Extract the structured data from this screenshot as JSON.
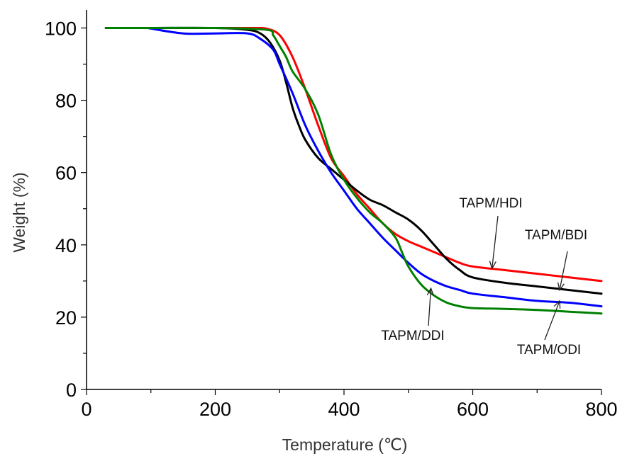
{
  "chart_data": {
    "type": "line",
    "xlabel": "Temperature (℃)",
    "ylabel": "Weight (%)",
    "xlim": [
      0,
      800
    ],
    "ylim": [
      0,
      105
    ],
    "x_ticks": [
      0,
      200,
      400,
      600,
      800
    ],
    "y_ticks": [
      0,
      20,
      40,
      60,
      80,
      100
    ],
    "grid": false,
    "legend": "none",
    "series": [
      {
        "name": "TAPM/HDI",
        "color": "#ff0000",
        "x": [
          30,
          100,
          200,
          260,
          280,
          300,
          320,
          340,
          360,
          380,
          400,
          420,
          440,
          460,
          480,
          500,
          520,
          540,
          560,
          580,
          600,
          650,
          700,
          750,
          800
        ],
        "y": [
          100,
          100,
          100,
          100,
          99.8,
          98,
          92,
          83,
          73,
          64,
          59,
          54,
          50,
          46,
          43,
          41,
          39.5,
          38,
          36.5,
          35,
          34,
          33,
          32,
          31,
          30
        ]
      },
      {
        "name": "TAPM/BDI",
        "color": "#000000",
        "x": [
          30,
          100,
          200,
          250,
          270,
          285,
          300,
          310,
          320,
          330,
          340,
          360,
          380,
          400,
          420,
          440,
          460,
          480,
          500,
          520,
          540,
          560,
          580,
          600,
          650,
          700,
          750,
          800
        ],
        "y": [
          100,
          100,
          100,
          99.5,
          98.5,
          96,
          91,
          85,
          78,
          73,
          69,
          64,
          61,
          58,
          55,
          52.5,
          51,
          49,
          47,
          44,
          40,
          36,
          33,
          31,
          29.5,
          28.5,
          27.5,
          26.5
        ]
      },
      {
        "name": "TAPM/ODI",
        "color": "#0000ff",
        "x": [
          95,
          150,
          200,
          250,
          270,
          290,
          300,
          320,
          340,
          360,
          380,
          400,
          420,
          440,
          460,
          480,
          500,
          520,
          540,
          560,
          580,
          600,
          650,
          700,
          750,
          800
        ],
        "y": [
          100,
          98.5,
          98.5,
          98.5,
          97,
          94,
          90,
          82,
          73,
          66,
          60,
          55,
          50,
          46,
          42,
          38.5,
          35,
          32,
          30,
          28.5,
          27.5,
          26.5,
          25.5,
          24.5,
          24,
          23
        ]
      },
      {
        "name": "TAPM/DDI",
        "color": "#008000",
        "x": [
          30,
          100,
          200,
          280,
          290,
          300,
          310,
          320,
          340,
          360,
          380,
          400,
          420,
          440,
          460,
          480,
          490,
          500,
          520,
          540,
          560,
          580,
          600,
          650,
          700,
          750,
          800
        ],
        "y": [
          100,
          100,
          100,
          99.5,
          98,
          95,
          92,
          88,
          83,
          76,
          65,
          58,
          53,
          49,
          46,
          42,
          38,
          34,
          29,
          26,
          24,
          23,
          22.5,
          22.3,
          22,
          21.5,
          21
        ]
      }
    ],
    "annotations": [
      {
        "text": "TAPM/HDI",
        "target_x": 630,
        "target_y": 33.5
      },
      {
        "text": "TAPM/BDI",
        "target_x": 735,
        "target_y": 27.5
      },
      {
        "text": "TAPM/DDI",
        "target_x": 535,
        "target_y": 28
      },
      {
        "text": "TAPM/ODI",
        "target_x": 735,
        "target_y": 24.5
      }
    ]
  }
}
